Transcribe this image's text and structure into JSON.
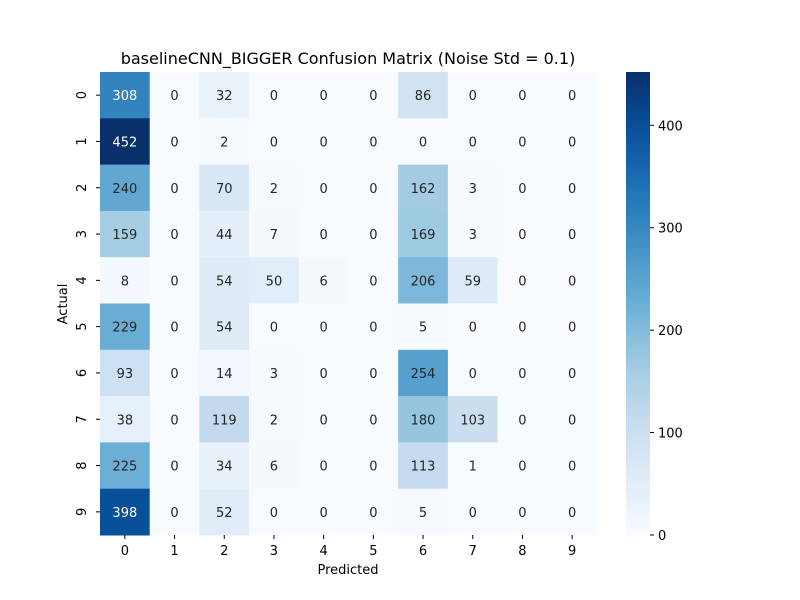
{
  "chart_data": {
    "type": "heatmap",
    "title": "baselineCNN_BIGGER Confusion Matrix (Noise Std = 0.1)",
    "xlabel": "Predicted",
    "ylabel": "Actual",
    "x_categories": [
      "0",
      "1",
      "2",
      "3",
      "4",
      "5",
      "6",
      "7",
      "8",
      "9"
    ],
    "y_categories": [
      "0",
      "1",
      "2",
      "3",
      "4",
      "5",
      "6",
      "7",
      "8",
      "9"
    ],
    "values": [
      [
        308,
        0,
        32,
        0,
        0,
        0,
        86,
        0,
        0,
        0
      ],
      [
        452,
        0,
        2,
        0,
        0,
        0,
        0,
        0,
        0,
        0
      ],
      [
        240,
        0,
        70,
        2,
        0,
        0,
        162,
        3,
        0,
        0
      ],
      [
        159,
        0,
        44,
        7,
        0,
        0,
        169,
        3,
        0,
        0
      ],
      [
        8,
        0,
        54,
        50,
        6,
        0,
        206,
        59,
        0,
        0
      ],
      [
        229,
        0,
        54,
        0,
        0,
        0,
        5,
        0,
        0,
        0
      ],
      [
        93,
        0,
        14,
        3,
        0,
        0,
        254,
        0,
        0,
        0
      ],
      [
        38,
        0,
        119,
        2,
        0,
        0,
        180,
        103,
        0,
        0
      ],
      [
        225,
        0,
        34,
        6,
        0,
        0,
        113,
        1,
        0,
        0
      ],
      [
        398,
        0,
        52,
        0,
        0,
        0,
        5,
        0,
        0,
        0
      ]
    ],
    "colormap": "Blues",
    "color_range": [
      0,
      452
    ],
    "colorbar_ticks": [
      "0",
      "100",
      "200",
      "300",
      "400"
    ],
    "colorbar_tick_values": [
      0,
      100,
      200,
      300,
      400
    ]
  }
}
